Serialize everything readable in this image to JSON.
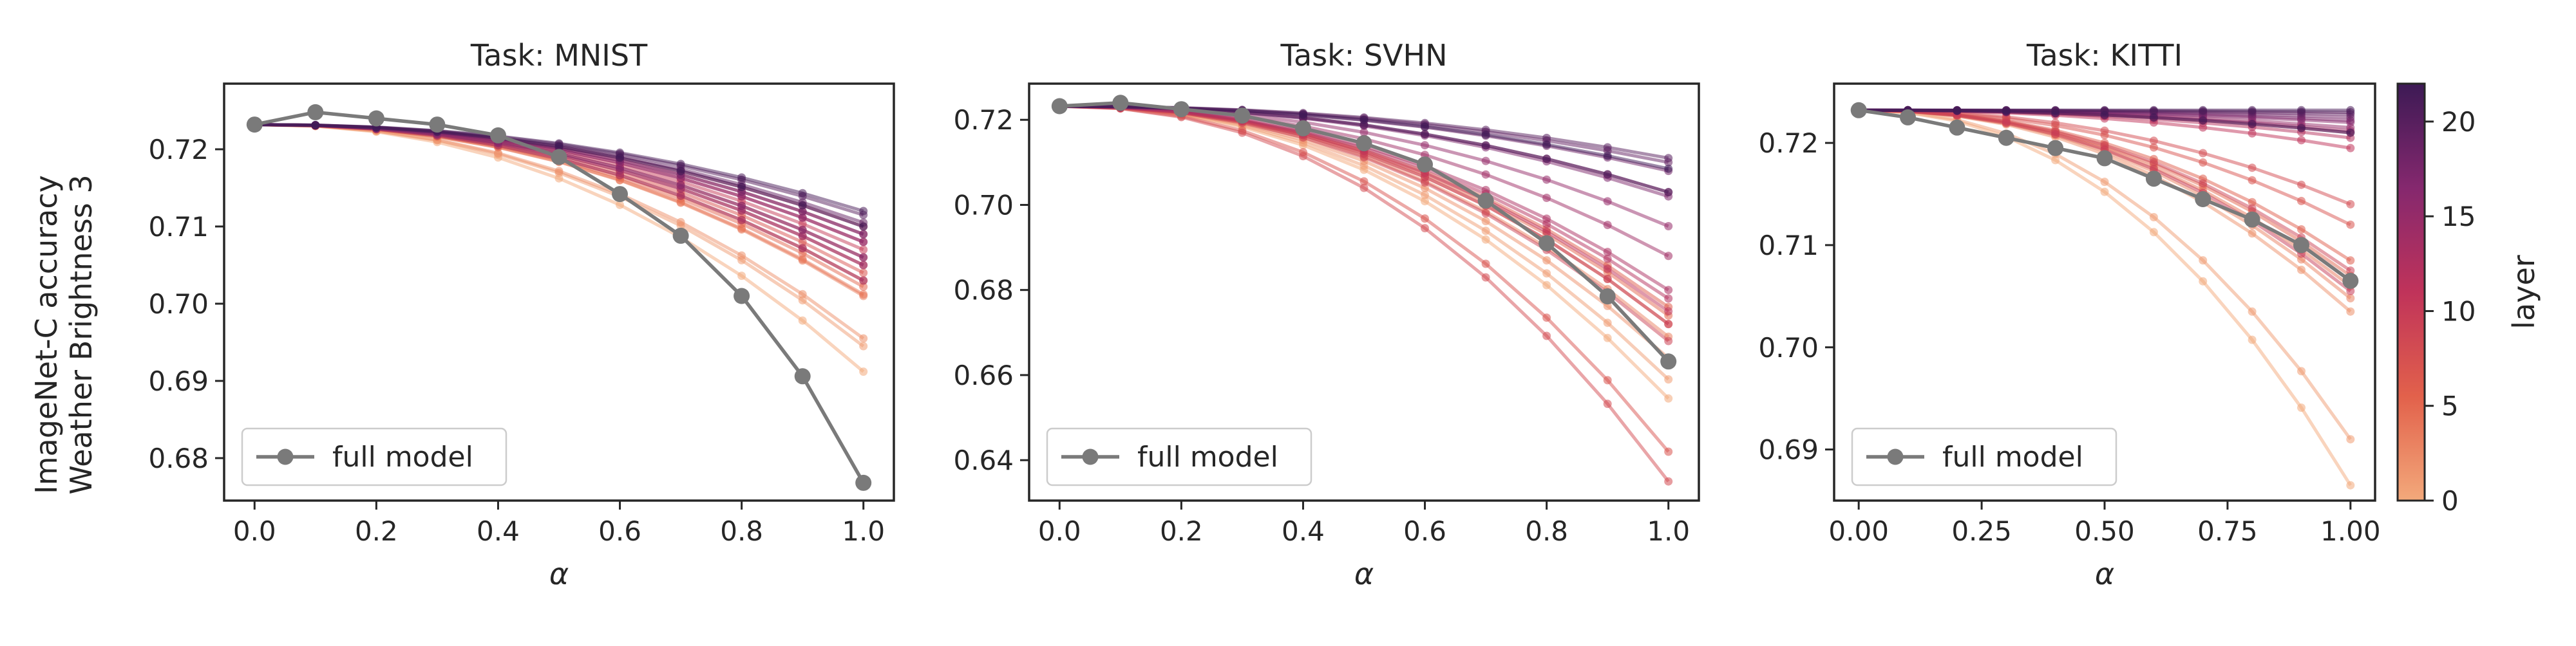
{
  "figure": {
    "ylabel_line1": "ImageNet-C accuracy",
    "ylabel_line2": "Weather Brightness 3",
    "colorbar": {
      "label": "layer",
      "min": 0,
      "max": 22,
      "ticks": [
        "0",
        "5",
        "10",
        "15",
        "20"
      ],
      "colors": [
        "#f3a97b",
        "#e2614b",
        "#c0335a",
        "#85286e",
        "#3d1a55"
      ]
    }
  },
  "chart_data": [
    {
      "type": "line",
      "title": "Task: MNIST",
      "xlabel": "α",
      "x": [
        0,
        0.1,
        0.2,
        0.3,
        0.4,
        0.5,
        0.6,
        0.7,
        0.8,
        0.9,
        1.0
      ],
      "xlim": [
        -0.05,
        1.05
      ],
      "ylim": [
        0.6745,
        0.7285
      ],
      "xticks": [
        0,
        0.2,
        0.4,
        0.6,
        0.8,
        1.0
      ],
      "xtick_labels": [
        "0.0",
        "0.2",
        "0.4",
        "0.6",
        "0.8",
        "1.0"
      ],
      "yticks": [
        0.68,
        0.69,
        0.7,
        0.71,
        0.72
      ],
      "ytick_labels": [
        "0.68",
        "0.69",
        "0.70",
        "0.71",
        "0.72"
      ],
      "legend": "full model",
      "full_model": {
        "name": "full model",
        "color": "#7a7a7a",
        "values": [
          0.7232,
          0.7248,
          0.724,
          0.7232,
          0.7218,
          0.719,
          0.7142,
          0.7088,
          0.701,
          0.6906,
          0.6768
        ]
      },
      "layer_end_values": [
        0.6912,
        0.6945,
        0.6955,
        0.701,
        0.7012,
        0.7022,
        0.703,
        0.704,
        0.705,
        0.706,
        0.707,
        0.708,
        0.709,
        0.71,
        0.703,
        0.705,
        0.708,
        0.706,
        0.709,
        0.7105,
        0.7115,
        0.712,
        0.71
      ]
    },
    {
      "type": "line",
      "title": "Task: SVHN",
      "xlabel": "α",
      "x": [
        0,
        0.1,
        0.2,
        0.3,
        0.4,
        0.5,
        0.6,
        0.7,
        0.8,
        0.9,
        1.0
      ],
      "xlim": [
        -0.05,
        1.05
      ],
      "ylim": [
        0.6305,
        0.7285
      ],
      "xticks": [
        0,
        0.2,
        0.4,
        0.6,
        0.8,
        1.0
      ],
      "xtick_labels": [
        "0.0",
        "0.2",
        "0.4",
        "0.6",
        "0.8",
        "1.0"
      ],
      "yticks": [
        0.64,
        0.66,
        0.68,
        0.7,
        0.72
      ],
      "ytick_labels": [
        "0.64",
        "0.66",
        "0.68",
        "0.70",
        "0.72"
      ],
      "legend": "full model",
      "full_model": {
        "name": "full model",
        "color": "#7a7a7a",
        "values": [
          0.7232,
          0.724,
          0.7225,
          0.721,
          0.718,
          0.7145,
          0.7095,
          0.701,
          0.691,
          0.6785,
          0.6632
        ]
      },
      "layer_end_values": [
        0.6545,
        0.659,
        0.664,
        0.669,
        0.672,
        0.674,
        0.676,
        0.642,
        0.635,
        0.668,
        0.672,
        0.675,
        0.678,
        0.68,
        0.688,
        0.695,
        0.703,
        0.702,
        0.708,
        0.71,
        0.711,
        0.703,
        0.7085
      ]
    },
    {
      "type": "line",
      "title": "Task: KITTI",
      "xlabel": "α",
      "x": [
        0,
        0.1,
        0.2,
        0.3,
        0.4,
        0.5,
        0.6,
        0.7,
        0.8,
        0.9,
        1.0
      ],
      "xlim": [
        -0.05,
        1.05
      ],
      "ylim": [
        0.685,
        0.7258
      ],
      "xticks": [
        0,
        0.25,
        0.5,
        0.75,
        1.0
      ],
      "xtick_labels": [
        "0.00",
        "0.25",
        "0.50",
        "0.75",
        "1.00"
      ],
      "yticks": [
        0.69,
        0.7,
        0.71,
        0.72
      ],
      "ytick_labels": [
        "0.69",
        "0.70",
        "0.71",
        "0.72"
      ],
      "legend": "full model",
      "full_model": {
        "name": "full model",
        "color": "#7a7a7a",
        "values": [
          0.7232,
          0.7225,
          0.7215,
          0.7205,
          0.7195,
          0.7185,
          0.7165,
          0.7145,
          0.7125,
          0.71,
          0.7065
        ]
      },
      "layer_end_values": [
        0.6865,
        0.691,
        0.7035,
        0.7048,
        0.706,
        0.707,
        0.7085,
        0.712,
        0.714,
        0.7075,
        0.7055,
        0.7195,
        0.7205,
        0.721,
        0.7212,
        0.7215,
        0.722,
        0.7222,
        0.7225,
        0.7228,
        0.723,
        0.7232,
        0.721
      ]
    }
  ]
}
